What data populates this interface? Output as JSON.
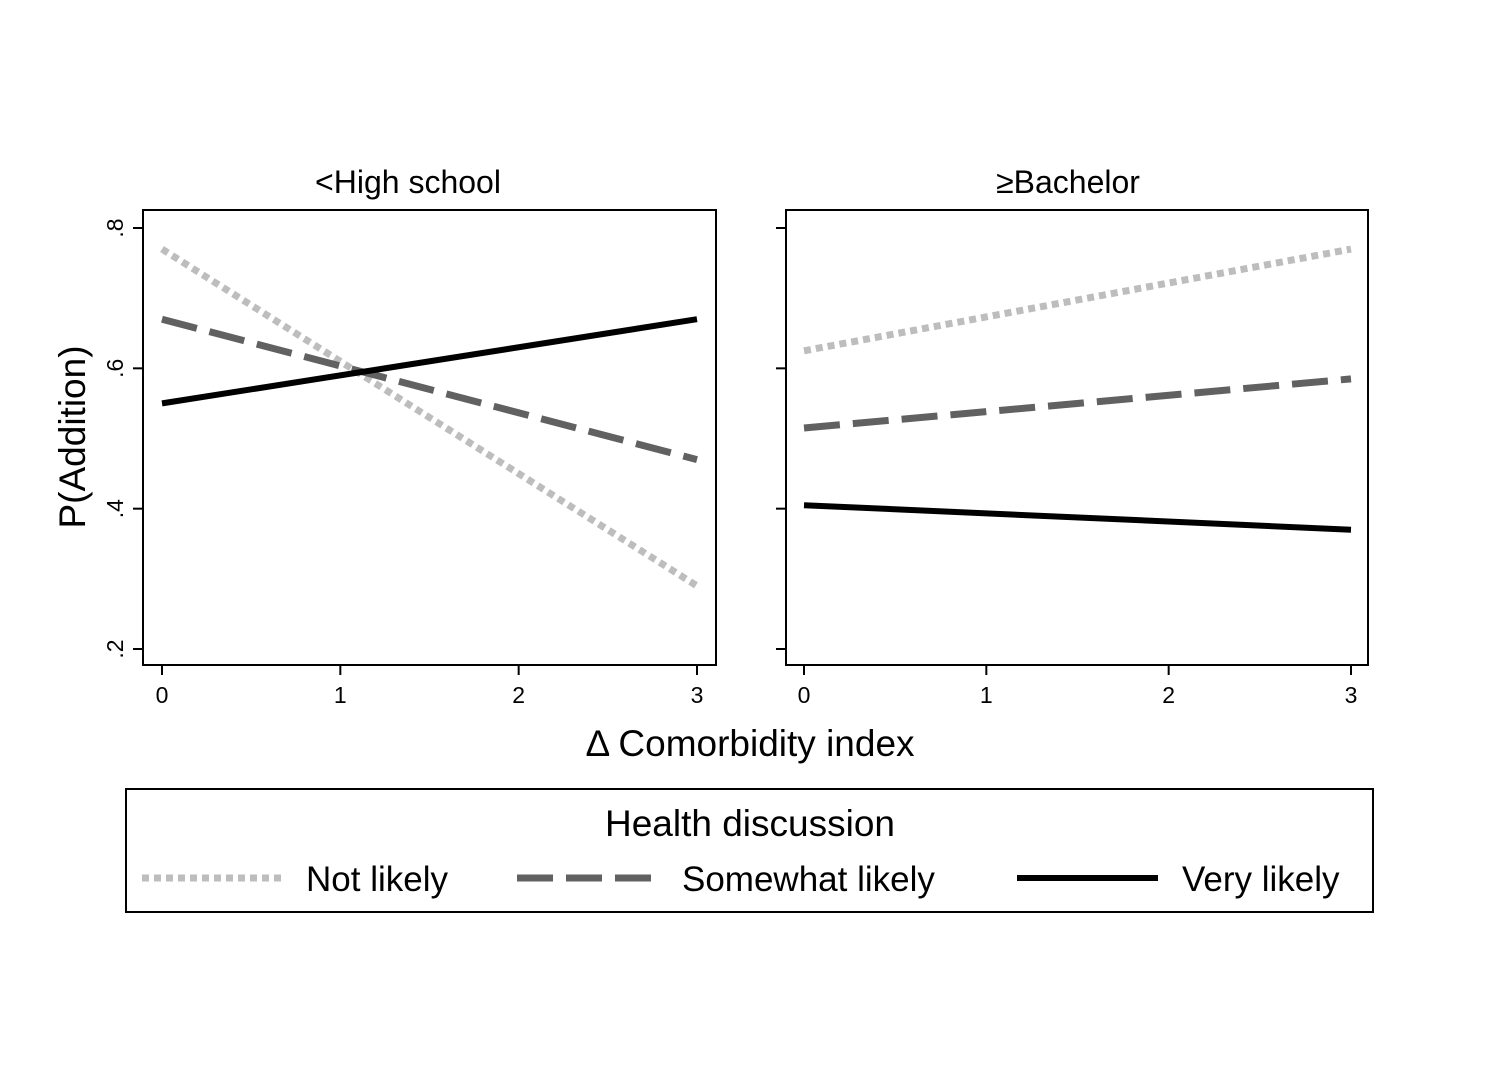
{
  "chart_data": {
    "type": "line",
    "ylabel": "P(Addition)",
    "xlabel": "Δ Comorbidity index",
    "x_ticks": [
      0,
      1,
      2,
      3
    ],
    "y_ticks": [
      0.2,
      0.4,
      0.6,
      0.8
    ],
    "y_tick_labels": [
      ".2",
      ".4",
      ".6",
      ".8"
    ],
    "xlim": [
      -0.1,
      3.1
    ],
    "ylim": [
      0.18,
      0.825
    ],
    "grid": false,
    "legend": {
      "title": "Health discussion",
      "position": "bottom",
      "entries": [
        "Not likely",
        "Somewhat likely",
        "Very likely"
      ]
    },
    "series_styles": [
      {
        "name": "Not likely",
        "color": "#bdbdbd",
        "dash": "dotted"
      },
      {
        "name": "Somewhat likely",
        "color": "#616161",
        "dash": "dashed"
      },
      {
        "name": "Very likely",
        "color": "#000000",
        "dash": "solid"
      }
    ],
    "panels": [
      {
        "title": "<High school",
        "series": [
          {
            "name": "Not likely",
            "x": [
              0,
              3
            ],
            "y": [
              0.77,
              0.29
            ]
          },
          {
            "name": "Somewhat likely",
            "x": [
              0,
              3
            ],
            "y": [
              0.67,
              0.47
            ]
          },
          {
            "name": "Very likely",
            "x": [
              0,
              3
            ],
            "y": [
              0.55,
              0.67
            ]
          }
        ]
      },
      {
        "title": "≥Bachelor",
        "series": [
          {
            "name": "Not likely",
            "x": [
              0,
              3
            ],
            "y": [
              0.625,
              0.77
            ]
          },
          {
            "name": "Somewhat likely",
            "x": [
              0,
              3
            ],
            "y": [
              0.515,
              0.585
            ]
          },
          {
            "name": "Very likely",
            "x": [
              0,
              3
            ],
            "y": [
              0.405,
              0.37
            ]
          }
        ]
      }
    ]
  }
}
